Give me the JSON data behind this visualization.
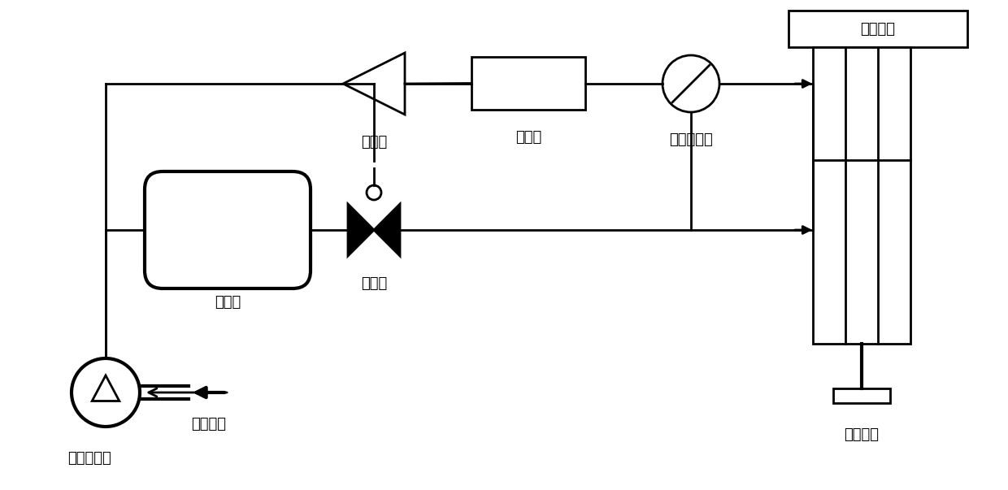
{
  "bg_color": "#ffffff",
  "line_color": "#000000",
  "line_width": 2.0,
  "font_size": 13,
  "labels": {
    "kongjian": "空间机构",
    "fangdaqi": "放大器",
    "kongzhiqi": "控制器",
    "qiyachuanganqi": "气压传感器",
    "bilifamen": "比例阀",
    "chujiguan": "储气罐",
    "konqiyasuoji": "空气压缩机",
    "kongqirukou": "空气入口",
    "henglizhongzhi": "恒力装置"
  },
  "figsize": [
    12.4,
    6.03
  ],
  "dpi": 100
}
